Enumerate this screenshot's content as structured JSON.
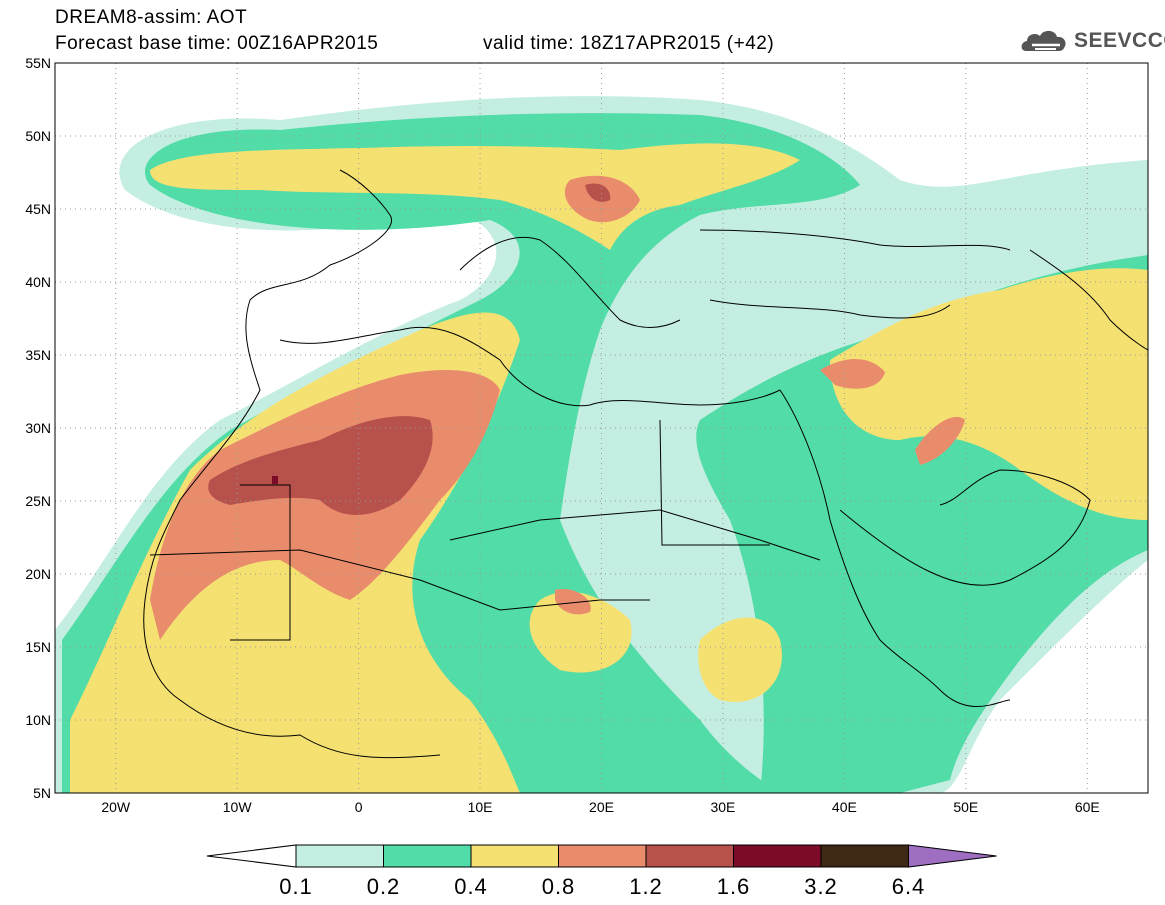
{
  "header": {
    "title": "DREAM8-assim: AOT",
    "base_time": "Forecast base time: 00Z16APR2015",
    "valid_time": "valid time: 18Z17APR2015 (+42)"
  },
  "brand": {
    "name": "SEEVCCC",
    "icon": "cloud-logo-icon"
  },
  "map": {
    "lat_range": [
      5,
      55
    ],
    "lon_range": [
      -25,
      65
    ],
    "lat_labels": [
      "55N",
      "50N",
      "45N",
      "40N",
      "35N",
      "30N",
      "25N",
      "20N",
      "15N",
      "10N",
      "5N"
    ],
    "lon_labels": [
      "20W",
      "10W",
      "0",
      "10E",
      "20E",
      "30E",
      "40E",
      "50E",
      "60E"
    ],
    "grid": true
  },
  "colorbar": {
    "thresholds": [
      "0.1",
      "0.2",
      "0.4",
      "0.8",
      "1.2",
      "1.6",
      "3.2",
      "6.4"
    ],
    "colors": [
      "#ffffff",
      "#c5eee3",
      "#52dca8",
      "#f5e172",
      "#e98c6c",
      "#b7514b",
      "#7c0b27",
      "#3e2914",
      "#9e6ec0"
    ]
  }
}
